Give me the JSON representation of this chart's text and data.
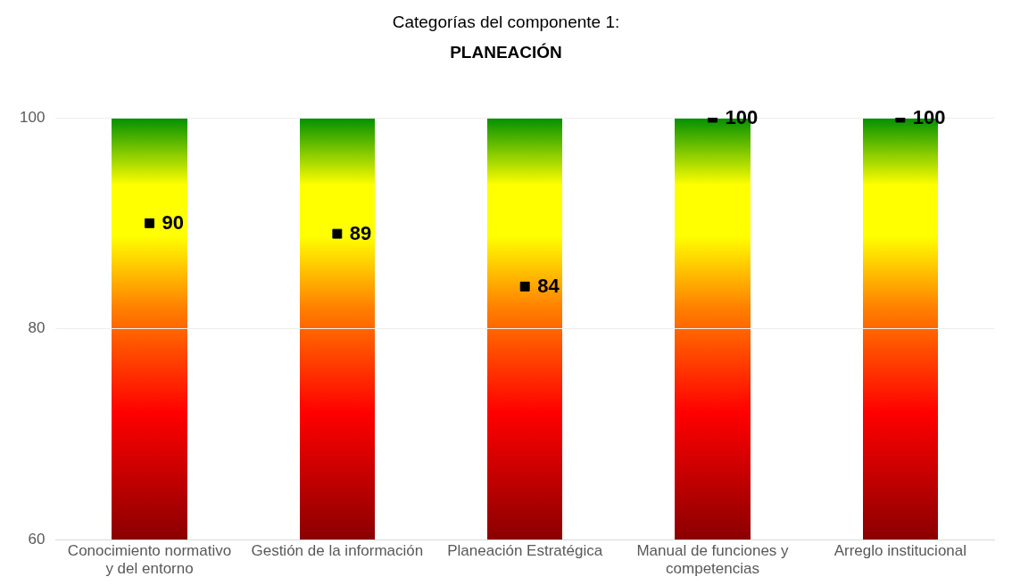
{
  "chart_data": {
    "type": "scatter",
    "title": "Categorías del componente 1:",
    "subtitle": "PLANEACIÓN",
    "categories": [
      "Conocimiento normativo y del entorno",
      "Gestión de la información",
      "Planeación Estratégica",
      "Manual de funciones y competencias",
      "Arreglo institucional"
    ],
    "series": [
      {
        "color": "#000000",
        "x": [
          "Conocimiento normativo y del entorno",
          "Gestión de la información",
          "Planeación Estratégica",
          "Manual de funciones y competencias",
          "Arreglo institucional"
        ],
        "values": [
          90,
          89,
          84,
          100,
          100
        ],
        "value_labels": [
          "90",
          "89",
          "84",
          "100",
          "100"
        ]
      }
    ],
    "marker": "square",
    "ylim": [
      60,
      100
    ],
    "yticks": [
      60,
      80,
      100
    ],
    "grid": "y",
    "legend": false
  }
}
